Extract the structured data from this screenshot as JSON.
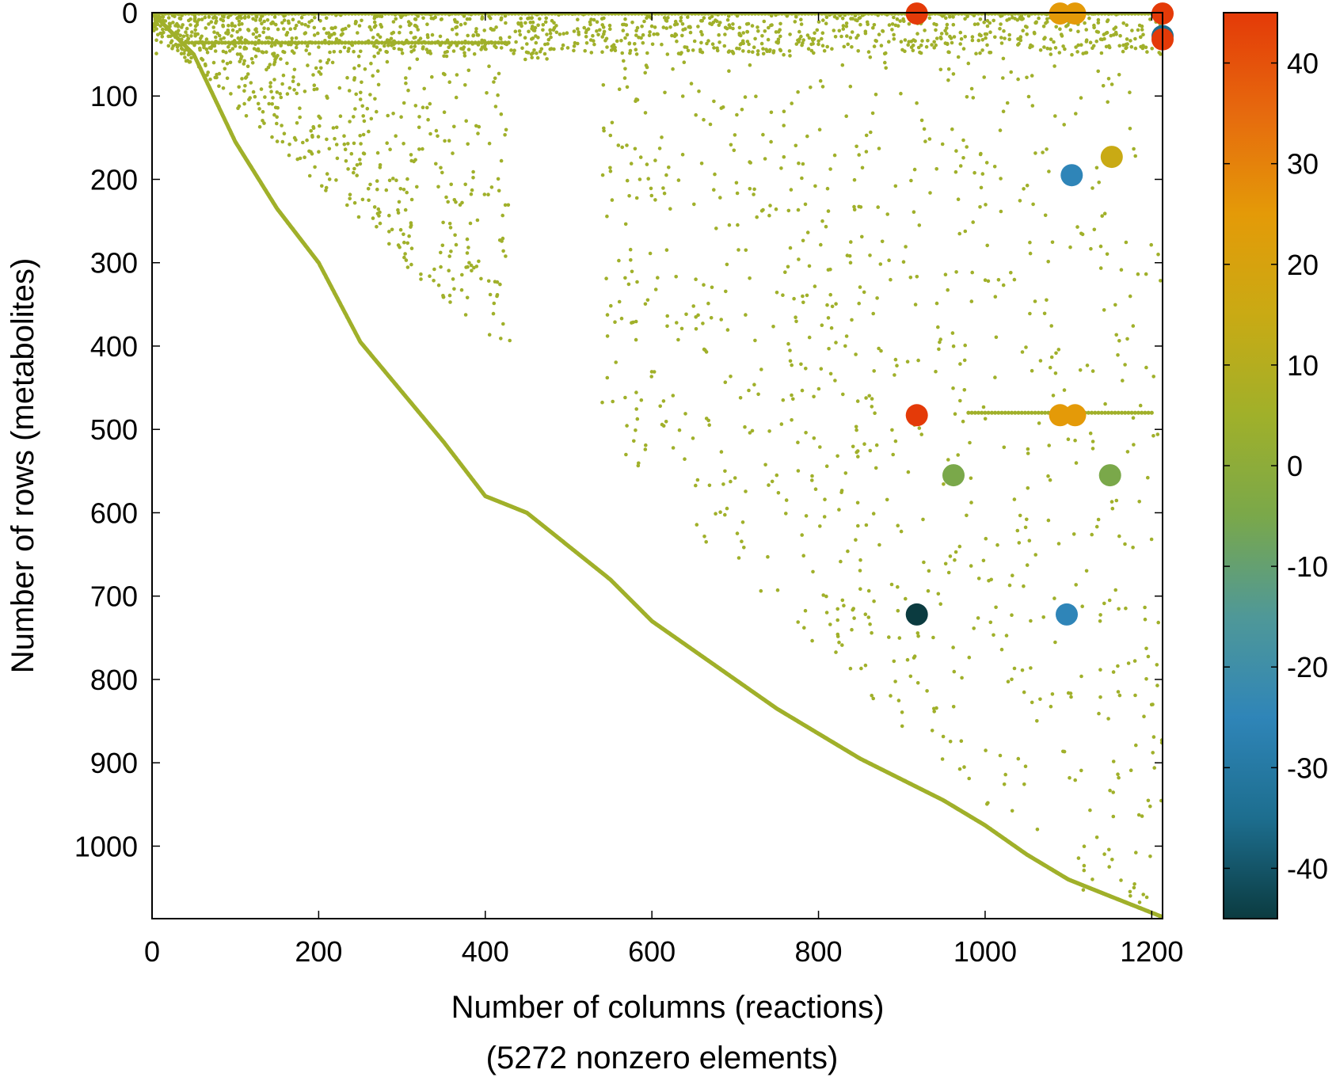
{
  "chart_data": {
    "type": "scatter",
    "title": "",
    "xlabel": "Number of columns (reactions)",
    "xlabel_line2": "(5272 nonzero elements)",
    "ylabel": "Number of rows (metabolites)",
    "xlim": [
      0,
      1213
    ],
    "ylim": [
      0,
      1087
    ],
    "y_inverted": true,
    "x_ticks": [
      "0",
      "200",
      "400",
      "600",
      "800",
      "1000",
      "1200"
    ],
    "y_ticks": [
      "0",
      "100",
      "200",
      "300",
      "400",
      "500",
      "600",
      "700",
      "800",
      "900",
      "1000"
    ],
    "grid": false,
    "colorbar": {
      "range": [
        -45,
        45
      ],
      "ticks": [
        "40",
        "30",
        "20",
        "10",
        "0",
        "-10",
        "-20",
        "-30",
        "-40"
      ],
      "colors": [
        "#0b3b40",
        "#1d6e8f",
        "#2f85b8",
        "#4f9898",
        "#7aa84a",
        "#a0b02a",
        "#c9aa14",
        "#e49a08",
        "#e66a0e",
        "#e43a08"
      ]
    },
    "diagonal_band": [
      [
        0,
        0
      ],
      [
        50,
        50
      ],
      [
        100,
        155
      ],
      [
        150,
        235
      ],
      [
        200,
        300
      ],
      [
        250,
        395
      ],
      [
        300,
        455
      ],
      [
        350,
        515
      ],
      [
        400,
        580
      ],
      [
        450,
        600
      ],
      [
        500,
        640
      ],
      [
        550,
        680
      ],
      [
        600,
        730
      ],
      [
        650,
        765
      ],
      [
        700,
        800
      ],
      [
        750,
        835
      ],
      [
        800,
        865
      ],
      [
        850,
        895
      ],
      [
        900,
        920
      ],
      [
        950,
        945
      ],
      [
        1000,
        975
      ],
      [
        1050,
        1010
      ],
      [
        1100,
        1040
      ],
      [
        1150,
        1060
      ],
      [
        1213,
        1085
      ]
    ],
    "dense_rows": [
      {
        "y": 1,
        "x_from": 0,
        "x_to": 1213
      },
      {
        "y": 36,
        "x_from": 40,
        "x_to": 430
      },
      {
        "y": 480,
        "x_from": 980,
        "x_to": 1200
      }
    ],
    "highlight_points": [
      {
        "x": 918,
        "y": 1,
        "value": 45
      },
      {
        "x": 1213,
        "y": 1,
        "value": 45
      },
      {
        "x": 1090,
        "y": 1,
        "value": 25
      },
      {
        "x": 1108,
        "y": 1,
        "value": 25
      },
      {
        "x": 1213,
        "y": 28,
        "value": -40
      },
      {
        "x": 1213,
        "y": 32,
        "value": 45
      },
      {
        "x": 1104,
        "y": 195,
        "value": -22
      },
      {
        "x": 1152,
        "y": 173,
        "value": 14
      },
      {
        "x": 918,
        "y": 483,
        "value": 45
      },
      {
        "x": 1090,
        "y": 483,
        "value": 25
      },
      {
        "x": 1108,
        "y": 483,
        "value": 25
      },
      {
        "x": 962,
        "y": 555,
        "value": -8
      },
      {
        "x": 1150,
        "y": 555,
        "value": -8
      },
      {
        "x": 918,
        "y": 722,
        "value": -45
      },
      {
        "x": 1098,
        "y": 722,
        "value": -22
      }
    ]
  }
}
